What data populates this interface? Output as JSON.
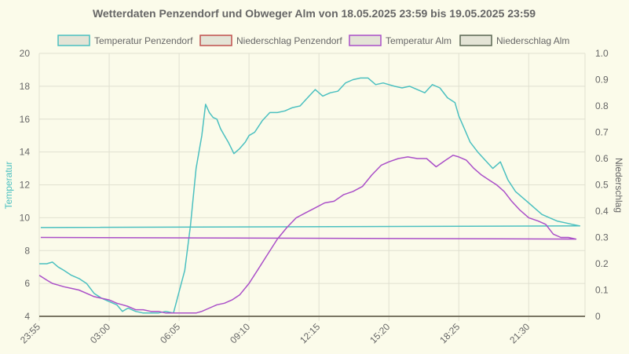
{
  "chart_data": {
    "type": "line",
    "title": "Wetterdaten Penzendorf und Obweger Alm von 18.05.2025 23:59 bis 19.05.2025 23:59",
    "ylabel": "Temperatur",
    "y2label": "Niederschlag",
    "ylim": [
      4,
      20
    ],
    "y2lim": [
      0,
      1.0
    ],
    "yticks": [
      "4",
      "6",
      "8",
      "10",
      "12",
      "14",
      "16",
      "18",
      "20"
    ],
    "y2ticks": [
      "0",
      "0.1",
      "0.2",
      "0.3",
      "0.4",
      "0.5",
      "0.6",
      "0.7",
      "0.8",
      "0.9",
      "1.0"
    ],
    "xticks": [
      "23:55",
      "03:00",
      "06:05",
      "09:10",
      "12:15",
      "15:20",
      "18:25",
      "21:30"
    ],
    "grid": true,
    "legend_position": "top",
    "colors": {
      "temp_penzendorf": "#4bc0c0",
      "rain_penzendorf": "#c0504d",
      "temp_alm": "#aa4fc8",
      "rain_alm": "#5a6652"
    },
    "series": [
      {
        "name": "Temperatur Penzendorf",
        "axis": "left",
        "x": [
          "23:55",
          "00:15",
          "00:30",
          "00:45",
          "01:00",
          "01:20",
          "01:40",
          "02:00",
          "02:20",
          "02:40",
          "03:00",
          "03:20",
          "03:35",
          "03:50",
          "04:10",
          "04:30",
          "04:50",
          "05:10",
          "05:30",
          "05:50",
          "06:05",
          "06:20",
          "06:35",
          "06:50",
          "07:05",
          "07:15",
          "07:25",
          "07:35",
          "07:45",
          "07:55",
          "08:05",
          "08:15",
          "08:30",
          "08:45",
          "09:00",
          "09:10",
          "09:25",
          "09:45",
          "10:05",
          "10:25",
          "10:45",
          "11:05",
          "11:25",
          "11:45",
          "12:05",
          "12:25",
          "12:45",
          "13:05",
          "13:25",
          "13:45",
          "14:05",
          "14:25",
          "14:45",
          "15:05",
          "15:20",
          "15:35",
          "15:55",
          "16:15",
          "16:35",
          "16:55",
          "17:15",
          "17:35",
          "17:55",
          "18:15",
          "18:25",
          "18:40",
          "18:55",
          "19:15",
          "19:35",
          "19:55",
          "20:15",
          "20:35",
          "20:55",
          "21:15",
          "21:30",
          "21:45",
          "22:05",
          "22:25",
          "22:45",
          "23:05",
          "23:25",
          "23:45",
          "23:59"
        ],
        "y": [
          7.2,
          7.2,
          7.3,
          7.0,
          6.8,
          6.5,
          6.3,
          6.0,
          5.4,
          5.1,
          4.9,
          4.7,
          4.3,
          4.5,
          4.3,
          4.2,
          4.2,
          4.2,
          4.3,
          4.2,
          5.5,
          6.8,
          9.5,
          13.0,
          15.0,
          16.9,
          16.4,
          16.1,
          16.0,
          15.4,
          15.0,
          14.6,
          13.9,
          14.2,
          14.6,
          15.0,
          15.2,
          15.9,
          16.4,
          16.4,
          16.5,
          16.7,
          16.8,
          17.3,
          17.8,
          17.4,
          17.6,
          17.7,
          18.2,
          18.4,
          18.5,
          18.5,
          18.1,
          18.2,
          18.1,
          18.0,
          17.9,
          18.0,
          17.8,
          17.6,
          18.1,
          17.9,
          17.3,
          17.0,
          16.2,
          15.4,
          14.6,
          14.0,
          13.5,
          13.0,
          13.4,
          12.3,
          11.6,
          11.2,
          10.9,
          10.6,
          10.2,
          10.0,
          9.8,
          9.7,
          9.6,
          9.5,
          9.4
        ]
      },
      {
        "name": "Niederschlag Penzendorf",
        "axis": "right",
        "x": [
          "23:55",
          "23:59"
        ],
        "y": [
          0,
          0
        ]
      },
      {
        "name": "Temperatur Alm",
        "axis": "left",
        "x": [
          "23:55",
          "00:15",
          "00:30",
          "00:45",
          "01:00",
          "01:20",
          "01:40",
          "02:00",
          "02:20",
          "02:40",
          "03:00",
          "03:20",
          "03:35",
          "03:50",
          "04:10",
          "04:30",
          "04:50",
          "05:10",
          "05:30",
          "05:50",
          "06:05",
          "06:20",
          "06:35",
          "06:50",
          "07:05",
          "07:25",
          "07:45",
          "08:05",
          "08:25",
          "08:45",
          "09:10",
          "09:35",
          "10:00",
          "10:25",
          "10:50",
          "11:15",
          "11:40",
          "12:05",
          "12:30",
          "12:55",
          "13:20",
          "13:45",
          "14:10",
          "14:35",
          "15:00",
          "15:20",
          "15:45",
          "16:10",
          "16:35",
          "17:00",
          "17:25",
          "17:50",
          "18:10",
          "18:25",
          "18:45",
          "19:05",
          "19:25",
          "19:45",
          "20:05",
          "20:25",
          "20:45",
          "21:05",
          "21:30",
          "21:55",
          "22:15",
          "22:35",
          "22:55",
          "23:15",
          "23:35",
          "23:59"
        ],
        "y": [
          6.5,
          6.2,
          6.0,
          5.9,
          5.8,
          5.7,
          5.6,
          5.4,
          5.2,
          5.1,
          5.0,
          4.8,
          4.7,
          4.6,
          4.4,
          4.4,
          4.3,
          4.3,
          4.2,
          4.2,
          4.2,
          4.2,
          4.2,
          4.2,
          4.3,
          4.5,
          4.7,
          4.8,
          5.0,
          5.3,
          6.0,
          6.9,
          7.8,
          8.7,
          9.4,
          10.0,
          10.3,
          10.6,
          10.9,
          11.0,
          11.4,
          11.6,
          11.9,
          12.6,
          13.2,
          13.4,
          13.6,
          13.7,
          13.6,
          13.6,
          13.1,
          13.5,
          13.8,
          13.7,
          13.5,
          13.0,
          12.6,
          12.3,
          12.0,
          11.6,
          11.0,
          10.5,
          10.0,
          9.8,
          9.6,
          9.0,
          8.8,
          8.8,
          8.7,
          8.8
        ]
      },
      {
        "name": "Niederschlag Alm",
        "axis": "right",
        "x": [
          "23:55",
          "23:59"
        ],
        "y": [
          0,
          0
        ]
      }
    ]
  }
}
